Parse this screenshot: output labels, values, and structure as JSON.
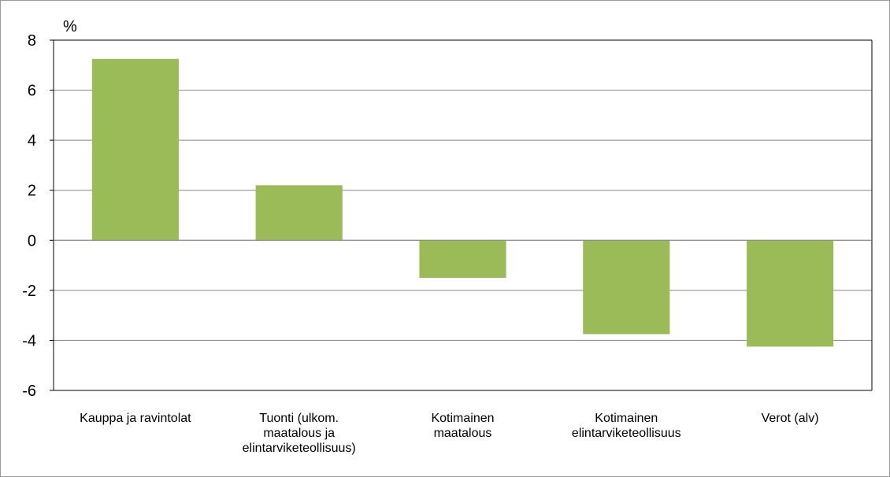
{
  "chart_data": {
    "type": "bar",
    "ylabel": "%",
    "categories": [
      [
        "Kauppa ja ravintolat"
      ],
      [
        "Tuonti (ulkom.",
        "maatalous ja",
        "elintarviketeollisuus)"
      ],
      [
        "Kotimainen",
        "maatalous"
      ],
      [
        "Kotimainen",
        "elintarviketeollisuus"
      ],
      [
        "Verot (alv)"
      ]
    ],
    "values": [
      7.25,
      2.2,
      -1.5,
      -3.75,
      -4.25
    ],
    "ylim": [
      -6,
      8
    ],
    "yticks": [
      8,
      6,
      4,
      2,
      0,
      -2,
      -4,
      -6
    ],
    "ytick_labels": [
      "8",
      "6",
      "4",
      "2",
      "0",
      "-2",
      "-4",
      "-6"
    ],
    "grid": true,
    "legend": false,
    "colors": {
      "bar": "#9bbb59",
      "grid": "#868686",
      "axis": "#000000"
    }
  }
}
